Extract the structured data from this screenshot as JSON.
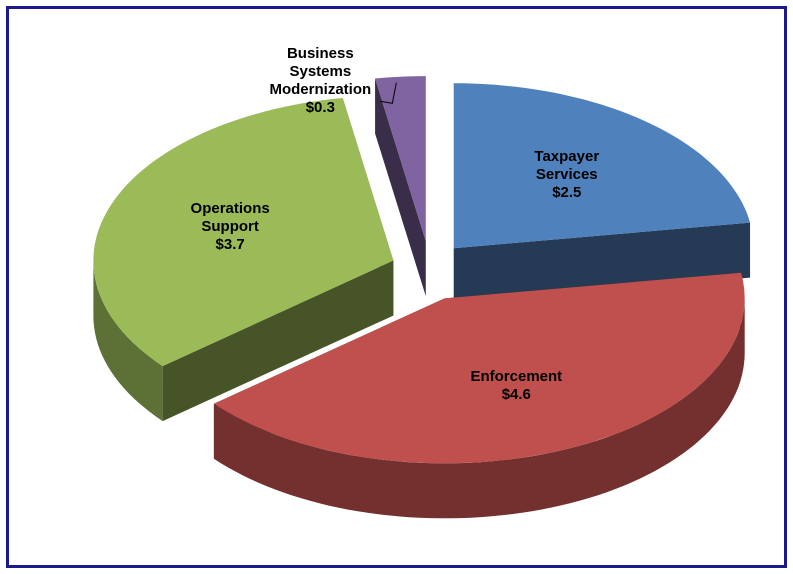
{
  "chart_data": {
    "type": "pie3d",
    "categories": [
      "Taxpayer Services",
      "Enforcement",
      "Operations Support",
      "Business Systems Modernization"
    ],
    "values": [
      2.5,
      4.6,
      3.7,
      0.3
    ],
    "value_labels": [
      "$2.5",
      "$4.6",
      "$3.7",
      "$0.3"
    ],
    "colors": [
      "#4f81bd",
      "#c0504d",
      "#9bbb59",
      "#8064a2"
    ]
  }
}
